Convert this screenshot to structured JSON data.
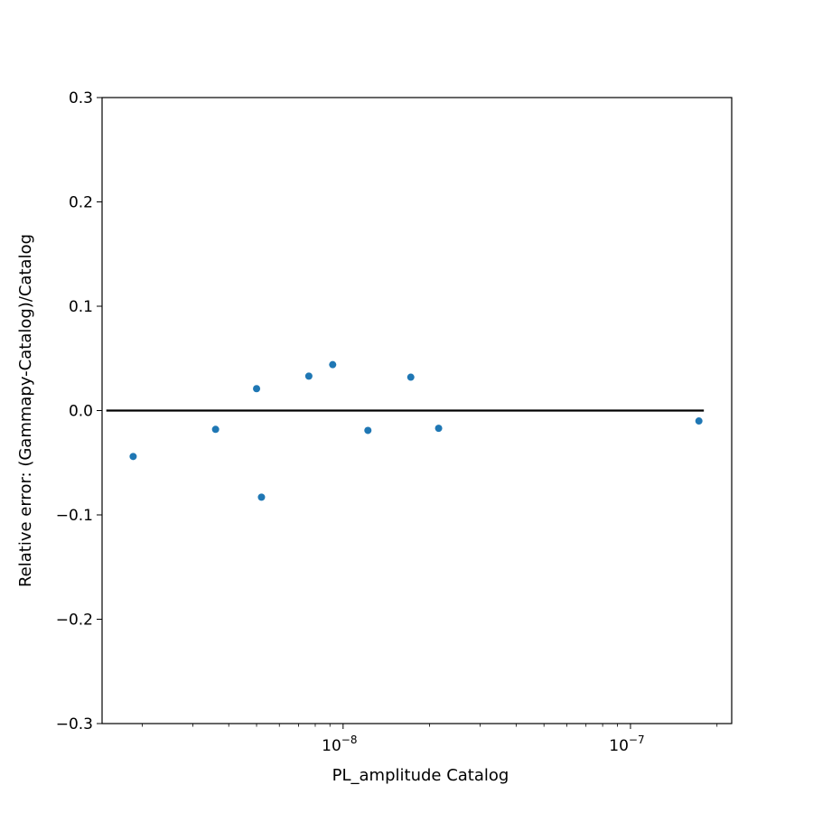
{
  "chart_data": {
    "type": "scatter",
    "xlabel": "PL_amplitude Catalog",
    "ylabel": "Relative error: (Gammapy-Catalog)/Catalog",
    "x_scale": "log",
    "xlim": [
      1.45e-09,
      2.25e-07
    ],
    "ylim": [
      -0.3,
      0.3
    ],
    "grid": false,
    "colors": {
      "points": "#1f77b4",
      "reference_line": "#000000",
      "axes": "#000000"
    },
    "x_ticks": [
      {
        "value": 1e-08,
        "base": "10",
        "exponent": "−8"
      },
      {
        "value": 1e-07,
        "base": "10",
        "exponent": "−7"
      }
    ],
    "y_ticks": [
      {
        "value": 0.3,
        "label": "0.3"
      },
      {
        "value": 0.2,
        "label": "0.2"
      },
      {
        "value": 0.1,
        "label": "0.1"
      },
      {
        "value": 0.0,
        "label": "0.0"
      },
      {
        "value": -0.1,
        "label": "−0.1"
      },
      {
        "value": -0.2,
        "label": "−0.2"
      },
      {
        "value": -0.3,
        "label": "−0.3"
      }
    ],
    "reference_line": {
      "y": 0.0,
      "x_start": 1.5e-09,
      "x_end": 1.8e-07
    },
    "series": [
      {
        "points": [
          {
            "x": 1.86e-09,
            "y": -0.044
          },
          {
            "x": 3.6e-09,
            "y": -0.018
          },
          {
            "x": 5e-09,
            "y": 0.021
          },
          {
            "x": 5.2e-09,
            "y": -0.083
          },
          {
            "x": 7.6e-09,
            "y": 0.033
          },
          {
            "x": 9.2e-09,
            "y": 0.044
          },
          {
            "x": 1.22e-08,
            "y": -0.019
          },
          {
            "x": 1.72e-08,
            "y": 0.032
          },
          {
            "x": 2.15e-08,
            "y": -0.017
          },
          {
            "x": 1.73e-07,
            "y": -0.01
          }
        ]
      }
    ]
  }
}
